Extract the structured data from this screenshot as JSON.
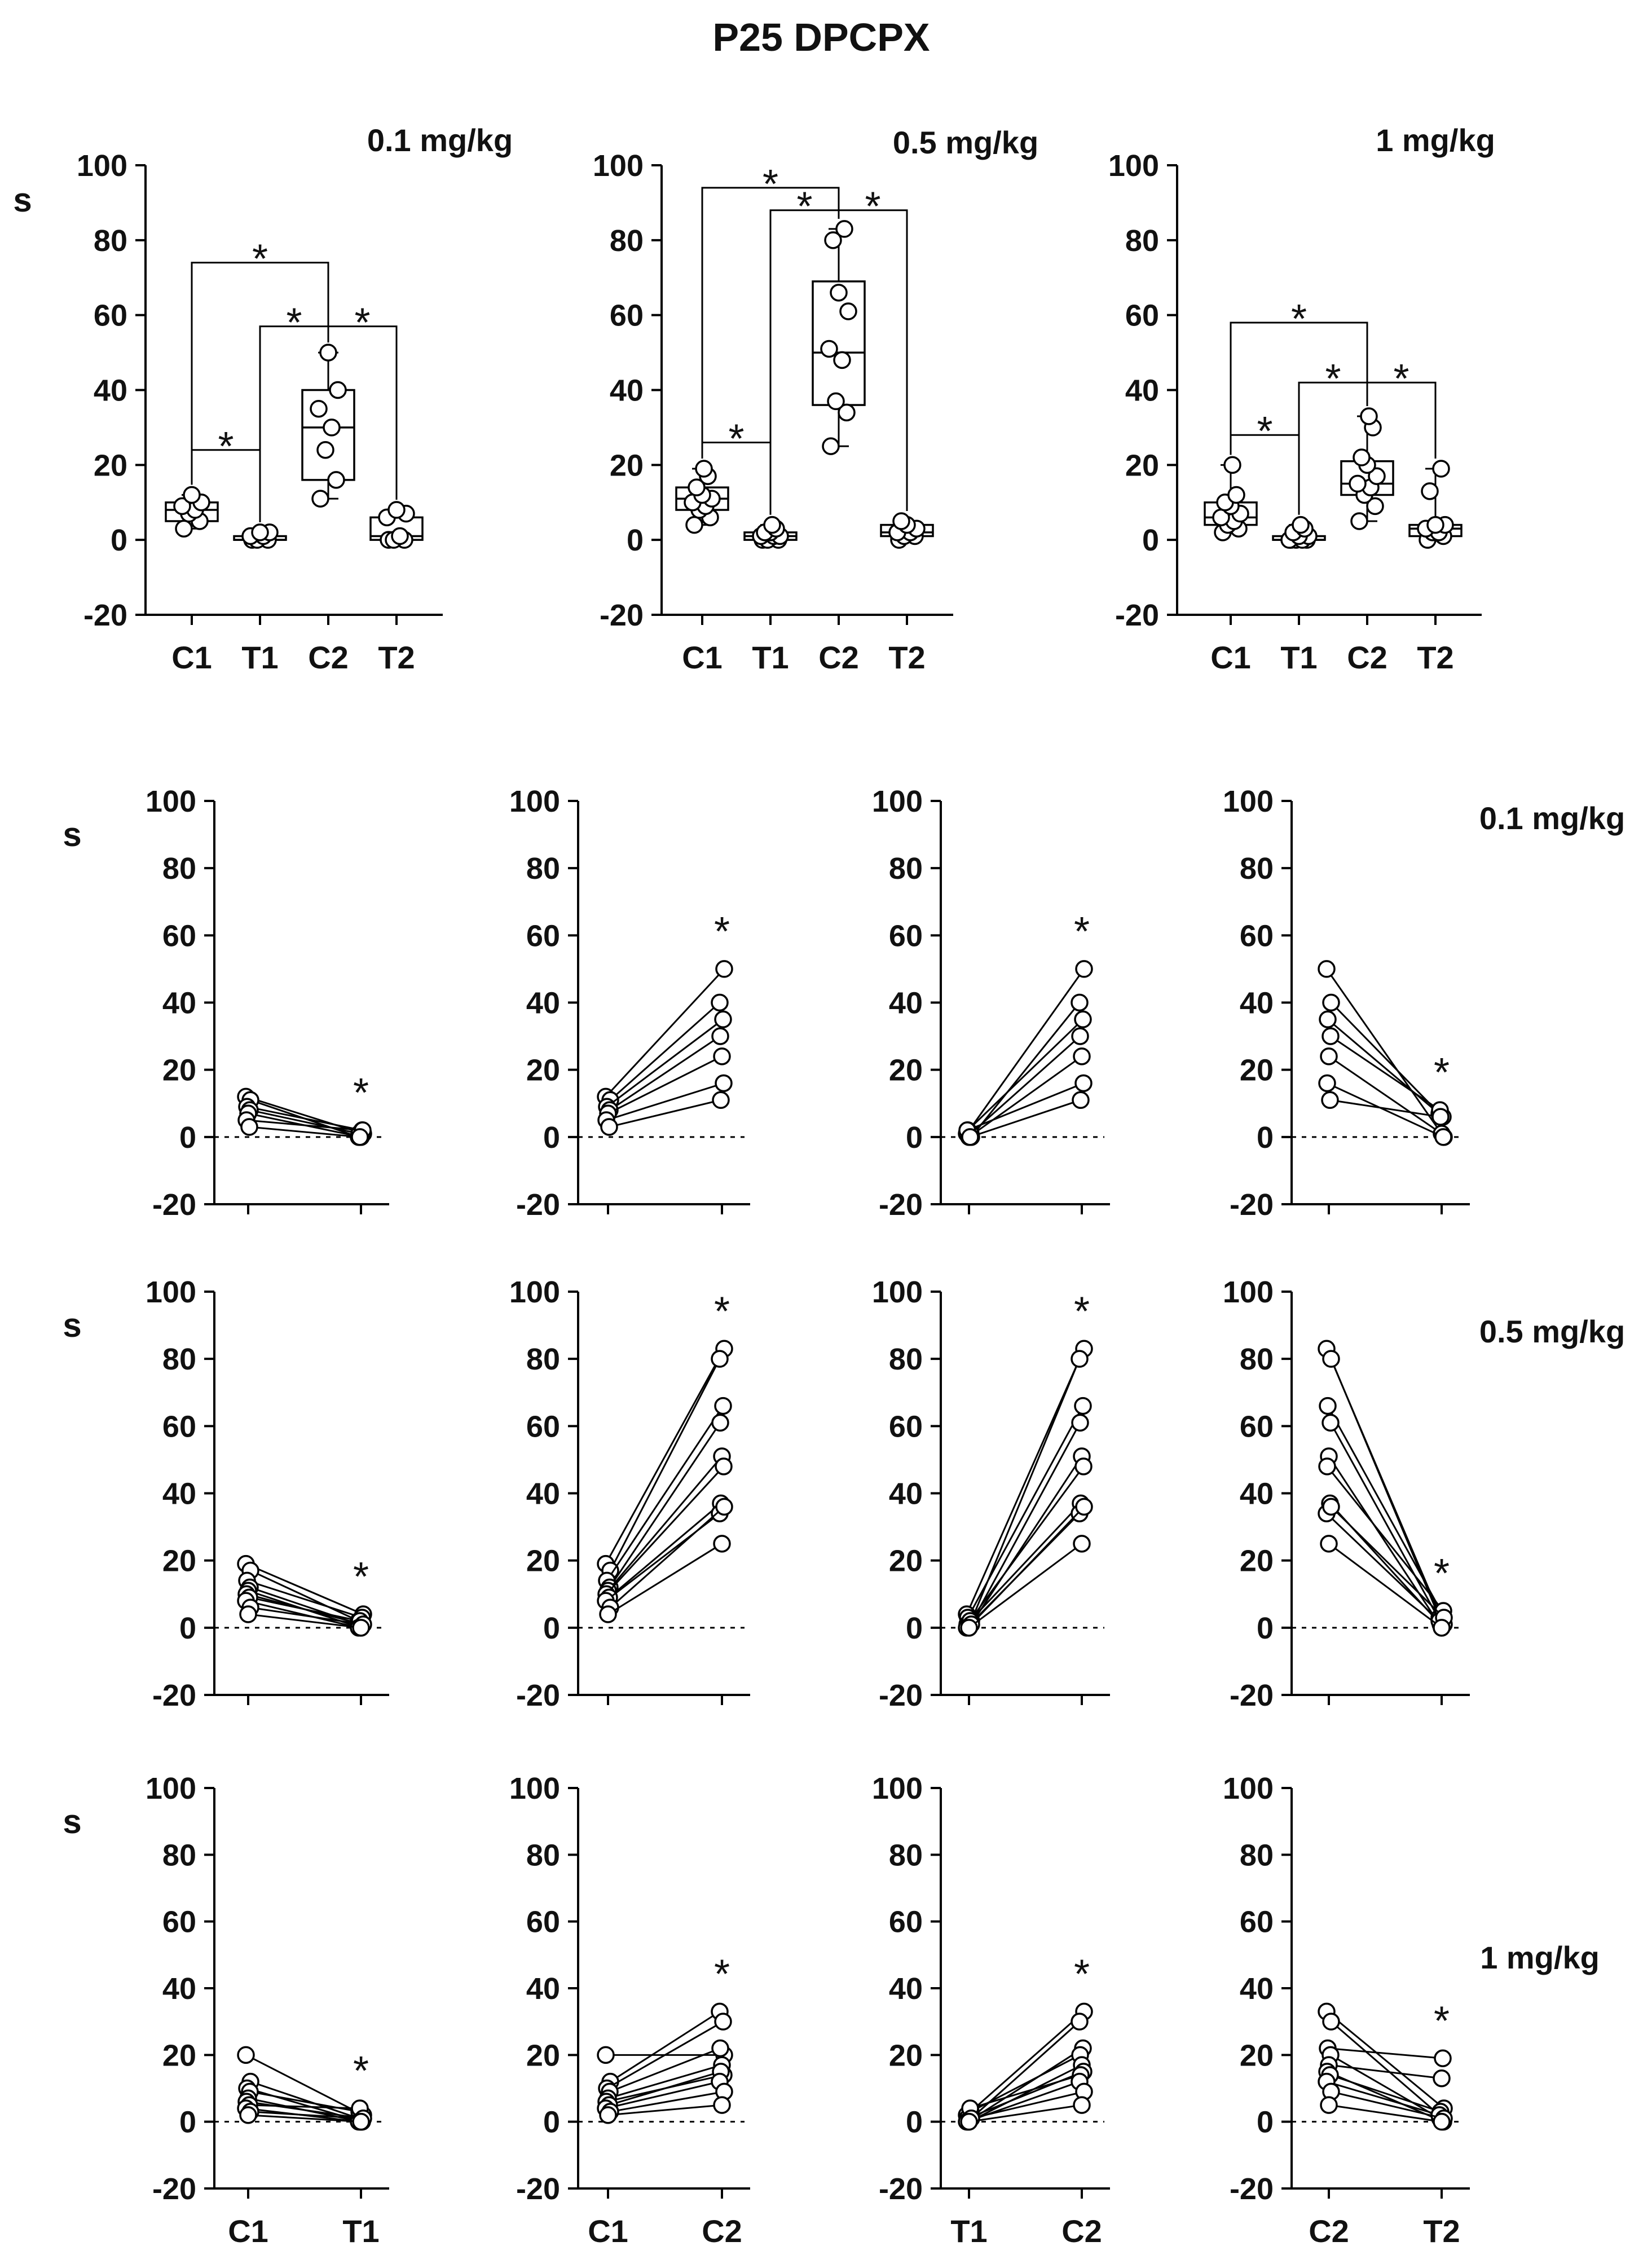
{
  "figure": {
    "title": "P25  DPCPX",
    "text_color": "#111111",
    "line_color": "#000000",
    "marker_fill": "#ffffff",
    "row_dose_labels": [
      "0.1 mg/kg",
      "0.5 mg/kg",
      "1 mg/kg"
    ]
  },
  "chart_data": [
    {
      "type": "box",
      "title": "0.1 mg/kg",
      "ylabel": "s",
      "ylim": [
        -20,
        100
      ],
      "yticks": [
        -20,
        0,
        20,
        40,
        60,
        80,
        100
      ],
      "categories": [
        "C1",
        "T1",
        "C2",
        "T2"
      ],
      "groups": [
        {
          "category": "C1",
          "q1": 5,
          "median": 8,
          "q3": 10,
          "whisker_low": 3,
          "whisker_high": 12,
          "points": [
            3,
            5,
            7,
            8,
            9,
            10,
            12
          ]
        },
        {
          "category": "T1",
          "q1": 0,
          "median": 0,
          "q3": 1,
          "whisker_low": 0,
          "whisker_high": 2,
          "points": [
            0,
            0,
            0,
            1,
            1,
            2,
            2
          ]
        },
        {
          "category": "C2",
          "q1": 16,
          "median": 30,
          "q3": 40,
          "whisker_low": 11,
          "whisker_high": 50,
          "points": [
            11,
            16,
            24,
            30,
            35,
            40,
            50
          ]
        },
        {
          "category": "T2",
          "q1": 0,
          "median": 1,
          "q3": 6,
          "whisker_low": 0,
          "whisker_high": 8,
          "points": [
            0,
            0,
            0,
            1,
            6,
            7,
            8
          ]
        }
      ],
      "comparisons": [
        {
          "from": "C1",
          "to": "T1",
          "y": 24,
          "label": "*"
        },
        {
          "from": "C1",
          "to": "C2",
          "y": 74,
          "label": "*"
        },
        {
          "from": "T1",
          "to": "C2",
          "y": 57,
          "label": "*"
        },
        {
          "from": "C2",
          "to": "T2",
          "y": 57,
          "label": "*"
        }
      ]
    },
    {
      "type": "box",
      "title": "0.5 mg/kg",
      "ylabel": "",
      "ylim": [
        -20,
        100
      ],
      "yticks": [
        -20,
        0,
        20,
        40,
        60,
        80,
        100
      ],
      "categories": [
        "C1",
        "T1",
        "C2",
        "T2"
      ],
      "groups": [
        {
          "category": "C1",
          "q1": 8,
          "median": 11,
          "q3": 14,
          "whisker_low": 4,
          "whisker_high": 19,
          "points": [
            4,
            6,
            8,
            9,
            10,
            11,
            12,
            14,
            17,
            19
          ]
        },
        {
          "category": "T1",
          "q1": 0,
          "median": 1,
          "q3": 2,
          "whisker_low": 0,
          "whisker_high": 4,
          "points": [
            0,
            0,
            0,
            1,
            1,
            1,
            2,
            2,
            3,
            4
          ]
        },
        {
          "category": "C2",
          "q1": 36,
          "median": 50,
          "q3": 69,
          "whisker_low": 25,
          "whisker_high": 83,
          "points": [
            25,
            34,
            37,
            48,
            51,
            61,
            66,
            80,
            83
          ]
        },
        {
          "category": "T2",
          "q1": 1,
          "median": 2,
          "q3": 4,
          "whisker_low": 0,
          "whisker_high": 5,
          "points": [
            0,
            1,
            1,
            2,
            2,
            3,
            4,
            5
          ]
        }
      ],
      "comparisons": [
        {
          "from": "C1",
          "to": "T1",
          "y": 26,
          "label": "*"
        },
        {
          "from": "C1",
          "to": "C2",
          "y": 94,
          "label": "*"
        },
        {
          "from": "T1",
          "to": "C2",
          "y": 88,
          "label": "*"
        },
        {
          "from": "C2",
          "to": "T2",
          "y": 88,
          "label": "*"
        }
      ]
    },
    {
      "type": "box",
      "title": "1 mg/kg",
      "ylabel": "",
      "ylim": [
        -20,
        100
      ],
      "yticks": [
        -20,
        0,
        20,
        40,
        60,
        80,
        100
      ],
      "categories": [
        "C1",
        "T1",
        "C2",
        "T2"
      ],
      "groups": [
        {
          "category": "C1",
          "q1": 4,
          "median": 6,
          "q3": 10,
          "whisker_low": 2,
          "whisker_high": 20,
          "points": [
            2,
            3,
            4,
            5,
            6,
            7,
            9,
            10,
            12,
            20
          ]
        },
        {
          "category": "T1",
          "q1": 0,
          "median": 0,
          "q3": 1,
          "whisker_low": 0,
          "whisker_high": 4,
          "points": [
            0,
            0,
            0,
            0,
            0,
            1,
            1,
            2,
            3,
            4
          ]
        },
        {
          "category": "C2",
          "q1": 12,
          "median": 15,
          "q3": 21,
          "whisker_low": 5,
          "whisker_high": 33,
          "points": [
            5,
            9,
            12,
            14,
            15,
            17,
            20,
            22,
            30,
            33
          ]
        },
        {
          "category": "T2",
          "q1": 1,
          "median": 3,
          "q3": 4,
          "whisker_low": 0,
          "whisker_high": 19,
          "points": [
            0,
            1,
            2,
            2,
            3,
            4,
            4,
            13,
            19
          ]
        }
      ],
      "comparisons": [
        {
          "from": "C1",
          "to": "T1",
          "y": 28,
          "label": "*"
        },
        {
          "from": "C1",
          "to": "C2",
          "y": 58,
          "label": "*"
        },
        {
          "from": "T1",
          "to": "C2",
          "y": 42,
          "label": "*"
        },
        {
          "from": "C2",
          "to": "T2",
          "y": 42,
          "label": "*"
        }
      ]
    },
    {
      "type": "paired",
      "dose": "0.1 mg/kg",
      "ylabel": "s",
      "ylim": [
        -20,
        100
      ],
      "yticks": [
        -20,
        0,
        20,
        40,
        60,
        80,
        100
      ],
      "categories": [
        "C1",
        "T1"
      ],
      "show_xlabels": false,
      "significance": "*",
      "pairs": [
        [
          12,
          1
        ],
        [
          11,
          0
        ],
        [
          9,
          2
        ],
        [
          8,
          1
        ],
        [
          7,
          0
        ],
        [
          5,
          2
        ],
        [
          3,
          0
        ]
      ]
    },
    {
      "type": "paired",
      "dose": "0.1 mg/kg",
      "ylabel": "",
      "ylim": [
        -20,
        100
      ],
      "yticks": [
        -20,
        0,
        20,
        40,
        60,
        80,
        100
      ],
      "categories": [
        "C1",
        "C2"
      ],
      "show_xlabels": false,
      "significance": "*",
      "pairs": [
        [
          12,
          50
        ],
        [
          11,
          40
        ],
        [
          9,
          35
        ],
        [
          8,
          30
        ],
        [
          7,
          24
        ],
        [
          5,
          16
        ],
        [
          3,
          11
        ]
      ]
    },
    {
      "type": "paired",
      "dose": "0.1 mg/kg",
      "ylabel": "",
      "ylim": [
        -20,
        100
      ],
      "yticks": [
        -20,
        0,
        20,
        40,
        60,
        80,
        100
      ],
      "categories": [
        "T1",
        "C2"
      ],
      "show_xlabels": false,
      "significance": "*",
      "pairs": [
        [
          1,
          50
        ],
        [
          0,
          40
        ],
        [
          2,
          35
        ],
        [
          1,
          30
        ],
        [
          0,
          24
        ],
        [
          2,
          16
        ],
        [
          0,
          11
        ]
      ]
    },
    {
      "type": "paired",
      "dose": "0.1 mg/kg",
      "ylabel": "",
      "ylim": [
        -20,
        100
      ],
      "yticks": [
        -20,
        0,
        20,
        40,
        60,
        80,
        100
      ],
      "categories": [
        "C2",
        "T2"
      ],
      "show_xlabels": false,
      "significance": "*",
      "pairs": [
        [
          50,
          0
        ],
        [
          40,
          7
        ],
        [
          35,
          6
        ],
        [
          30,
          8
        ],
        [
          24,
          1
        ],
        [
          16,
          0
        ],
        [
          11,
          6
        ]
      ]
    },
    {
      "type": "paired",
      "dose": "0.5 mg/kg",
      "ylabel": "s",
      "ylim": [
        -20,
        100
      ],
      "yticks": [
        -20,
        0,
        20,
        40,
        60,
        80,
        100
      ],
      "categories": [
        "C1",
        "T1"
      ],
      "show_xlabels": false,
      "significance": "*",
      "pairs": [
        [
          19,
          4
        ],
        [
          17,
          2
        ],
        [
          14,
          3
        ],
        [
          12,
          1
        ],
        [
          11,
          0
        ],
        [
          10,
          1
        ],
        [
          9,
          2
        ],
        [
          8,
          0
        ],
        [
          6,
          1
        ],
        [
          4,
          0
        ]
      ]
    },
    {
      "type": "paired",
      "dose": "0.5 mg/kg",
      "ylabel": "",
      "ylim": [
        -20,
        100
      ],
      "yticks": [
        -20,
        0,
        20,
        40,
        60,
        80,
        100
      ],
      "categories": [
        "C1",
        "C2"
      ],
      "show_xlabels": false,
      "significance": "*",
      "pairs": [
        [
          19,
          83
        ],
        [
          17,
          80
        ],
        [
          14,
          66
        ],
        [
          12,
          61
        ],
        [
          11,
          51
        ],
        [
          10,
          48
        ],
        [
          9,
          37
        ],
        [
          8,
          34
        ],
        [
          6,
          36
        ],
        [
          4,
          25
        ]
      ]
    },
    {
      "type": "paired",
      "dose": "0.5 mg/kg",
      "ylabel": "",
      "ylim": [
        -20,
        100
      ],
      "yticks": [
        -20,
        0,
        20,
        40,
        60,
        80,
        100
      ],
      "categories": [
        "T1",
        "C2"
      ],
      "show_xlabels": false,
      "significance": "*",
      "pairs": [
        [
          4,
          83
        ],
        [
          2,
          80
        ],
        [
          3,
          66
        ],
        [
          1,
          61
        ],
        [
          0,
          51
        ],
        [
          1,
          48
        ],
        [
          2,
          37
        ],
        [
          0,
          34
        ],
        [
          1,
          36
        ],
        [
          0,
          25
        ]
      ]
    },
    {
      "type": "paired",
      "dose": "0.5 mg/kg",
      "ylabel": "",
      "ylim": [
        -20,
        100
      ],
      "yticks": [
        -20,
        0,
        20,
        40,
        60,
        80,
        100
      ],
      "categories": [
        "C2",
        "T2"
      ],
      "show_xlabels": false,
      "significance": "*",
      "pairs": [
        [
          83,
          1
        ],
        [
          80,
          3
        ],
        [
          66,
          4
        ],
        [
          61,
          2
        ],
        [
          51,
          0
        ],
        [
          48,
          5
        ],
        [
          37,
          1
        ],
        [
          34,
          2
        ],
        [
          36,
          3
        ],
        [
          25,
          0
        ]
      ]
    },
    {
      "type": "paired",
      "dose": "1 mg/kg",
      "ylabel": "s",
      "ylim": [
        -20,
        100
      ],
      "yticks": [
        -20,
        0,
        20,
        40,
        60,
        80,
        100
      ],
      "categories": [
        "C1",
        "T1"
      ],
      "show_xlabels": true,
      "significance": "*",
      "pairs": [
        [
          20,
          2
        ],
        [
          12,
          1
        ],
        [
          10,
          0
        ],
        [
          9,
          3
        ],
        [
          7,
          0
        ],
        [
          6,
          1
        ],
        [
          5,
          4
        ],
        [
          4,
          0
        ],
        [
          3,
          1
        ],
        [
          2,
          0
        ]
      ]
    },
    {
      "type": "paired",
      "dose": "1 mg/kg",
      "ylabel": "",
      "ylim": [
        -20,
        100
      ],
      "yticks": [
        -20,
        0,
        20,
        40,
        60,
        80,
        100
      ],
      "categories": [
        "C1",
        "C2"
      ],
      "show_xlabels": true,
      "significance": "*",
      "pairs": [
        [
          20,
          20
        ],
        [
          12,
          33
        ],
        [
          10,
          30
        ],
        [
          9,
          22
        ],
        [
          7,
          17
        ],
        [
          6,
          14
        ],
        [
          5,
          15
        ],
        [
          4,
          12
        ],
        [
          3,
          9
        ],
        [
          2,
          5
        ]
      ]
    },
    {
      "type": "paired",
      "dose": "1 mg/kg",
      "ylabel": "",
      "ylim": [
        -20,
        100
      ],
      "yticks": [
        -20,
        0,
        20,
        40,
        60,
        80,
        100
      ],
      "categories": [
        "T1",
        "C2"
      ],
      "show_xlabels": true,
      "significance": "*",
      "pairs": [
        [
          2,
          33
        ],
        [
          1,
          30
        ],
        [
          0,
          22
        ],
        [
          3,
          20
        ],
        [
          0,
          17
        ],
        [
          1,
          15
        ],
        [
          4,
          14
        ],
        [
          0,
          12
        ],
        [
          1,
          9
        ],
        [
          0,
          5
        ]
      ]
    },
    {
      "type": "paired",
      "dose": "1 mg/kg",
      "ylabel": "",
      "ylim": [
        -20,
        100
      ],
      "yticks": [
        -20,
        0,
        20,
        40,
        60,
        80,
        100
      ],
      "categories": [
        "C2",
        "T2"
      ],
      "show_xlabels": true,
      "significance": "*",
      "pairs": [
        [
          33,
          4
        ],
        [
          30,
          2
        ],
        [
          22,
          19
        ],
        [
          20,
          1
        ],
        [
          17,
          13
        ],
        [
          15,
          0
        ],
        [
          14,
          3
        ],
        [
          12,
          2
        ],
        [
          9,
          1
        ],
        [
          5,
          0
        ]
      ]
    }
  ]
}
